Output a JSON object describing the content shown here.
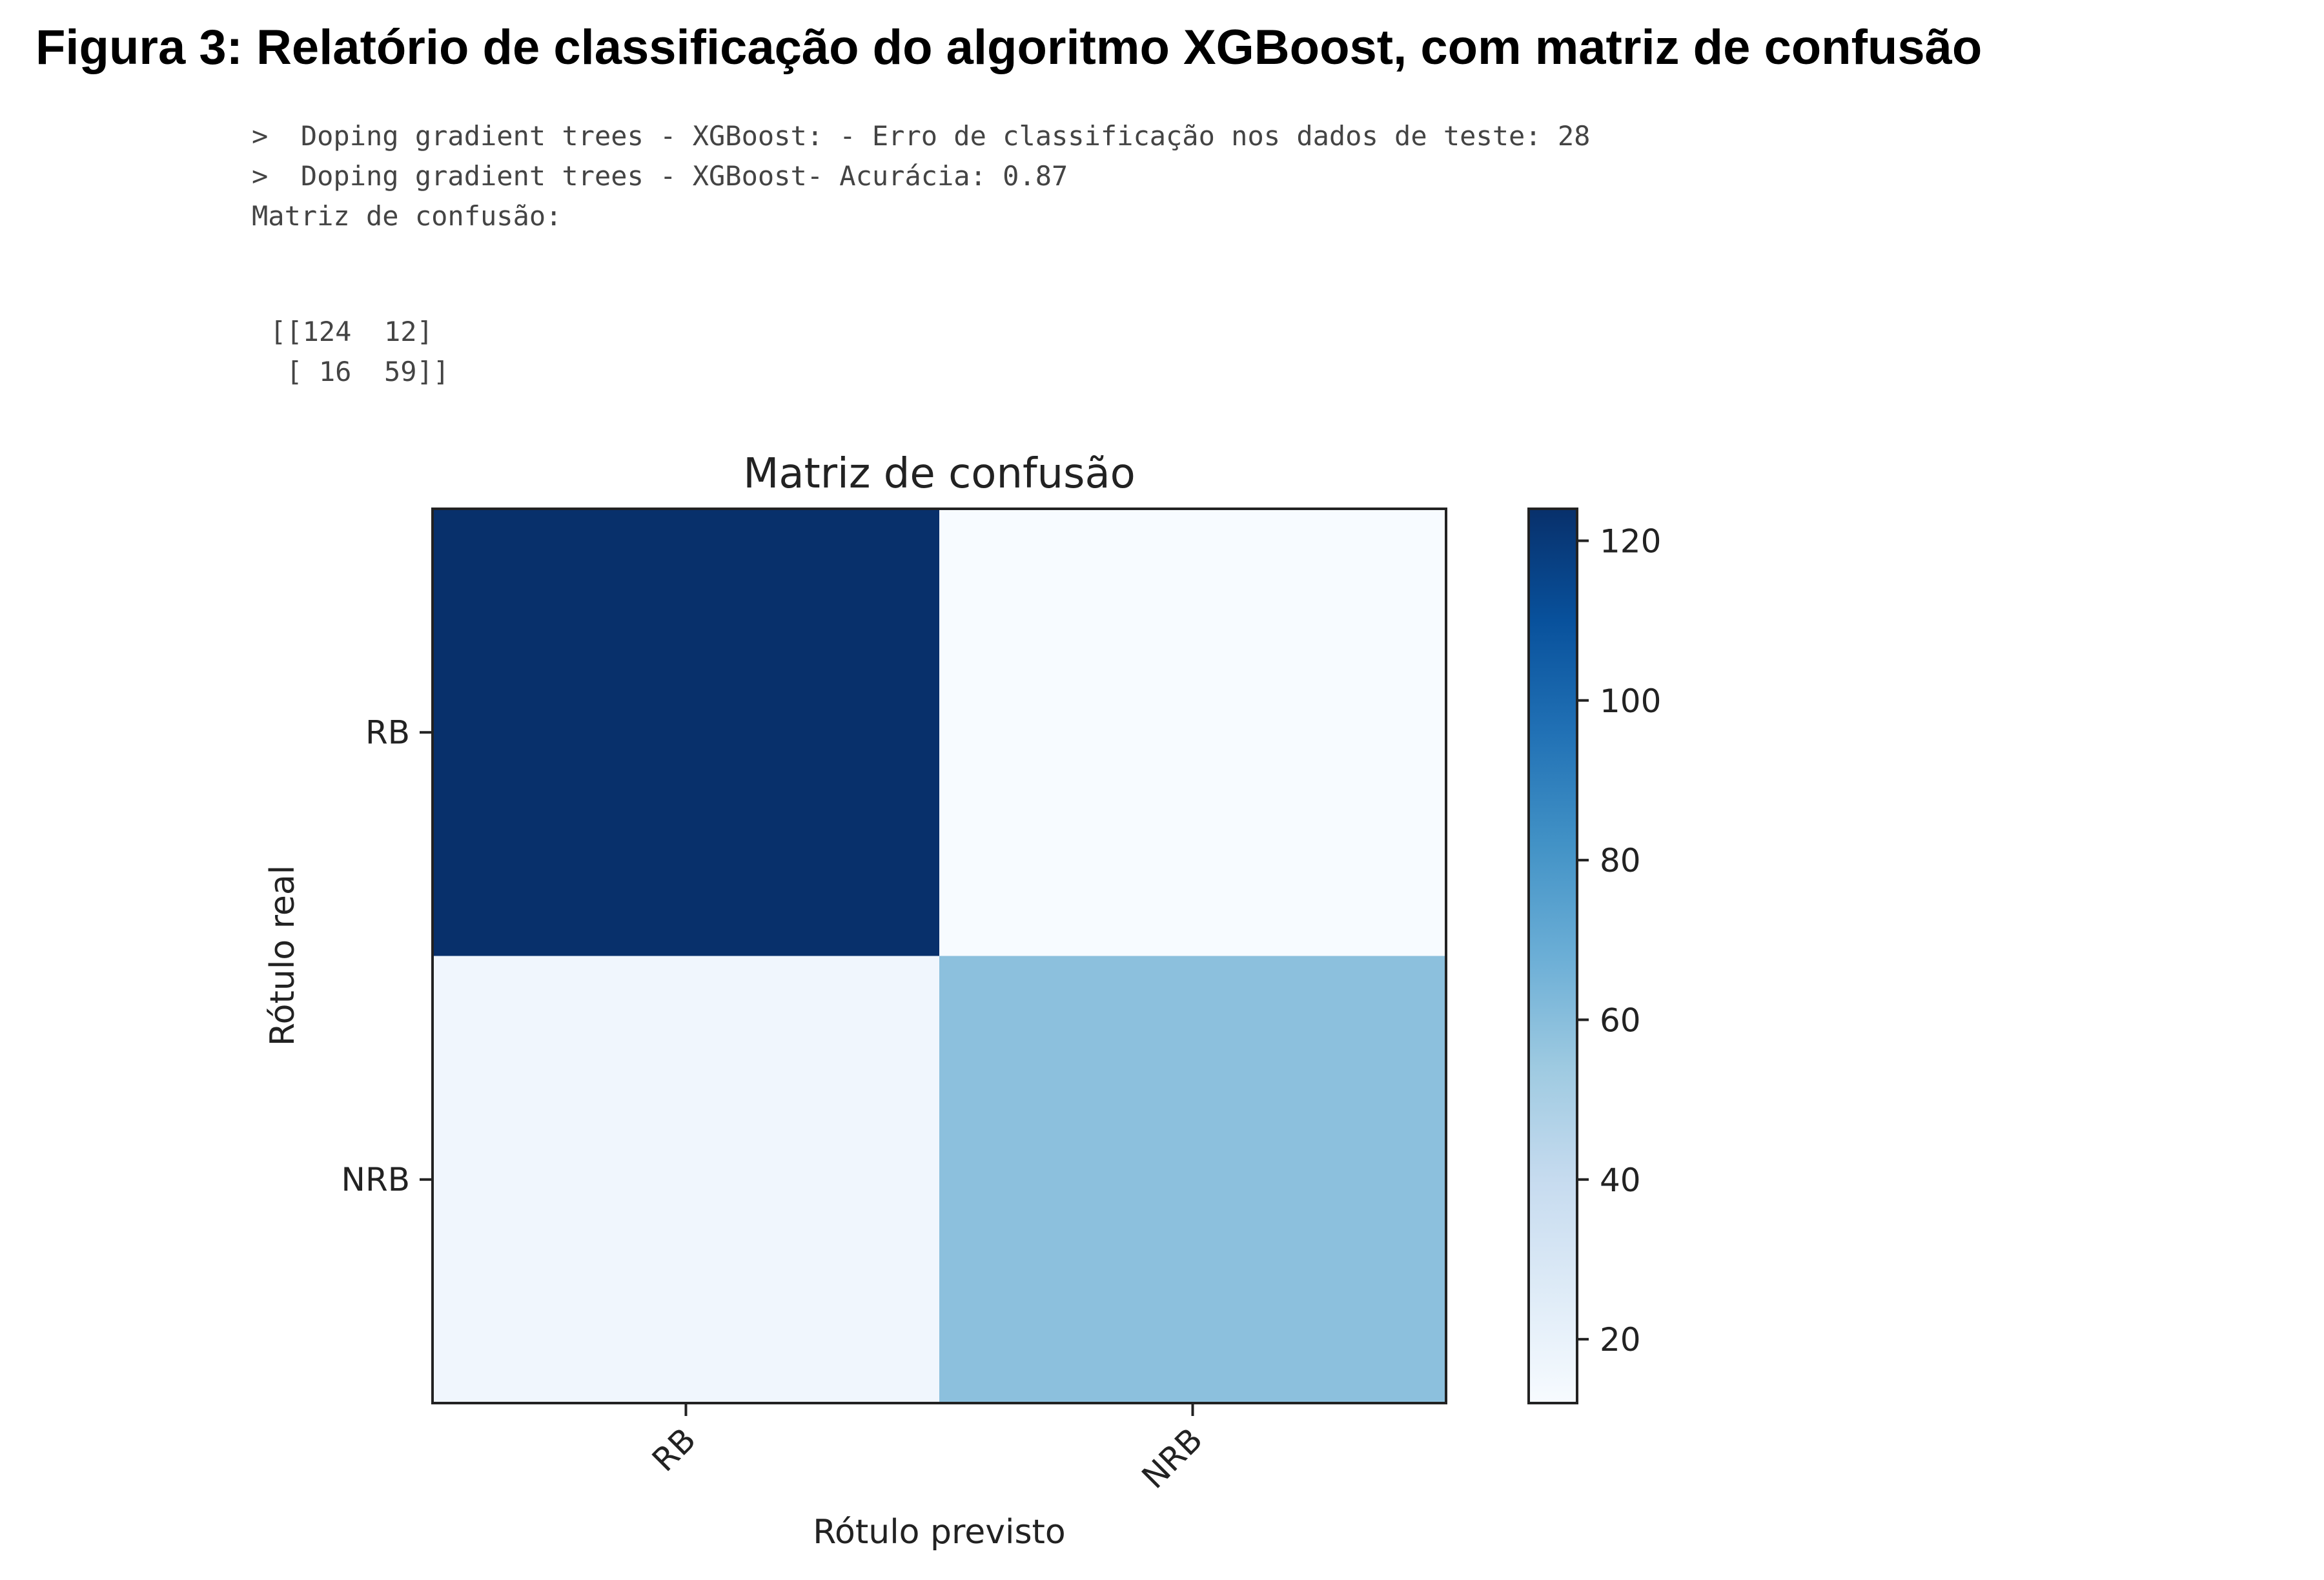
{
  "figure": {
    "caption": "Figura 3: Relatório de classificação do algoritmo XGBoost, com matriz de confusão"
  },
  "console": {
    "line1": ">  Doping gradient trees - XGBoost: - Erro de classificação nos dados de teste: 28",
    "line2": ">  Doping gradient trees - XGBoost- Acurácia: 0.87",
    "line3": "Matriz de confusão:",
    "matrix_row1": "[[124  12]",
    "matrix_row2": " [ 16  59]]"
  },
  "chart_data": {
    "type": "heatmap",
    "title": "Matriz de confusão",
    "xlabel": "Rótulo previsto",
    "ylabel": "Rótulo real",
    "x_categories": [
      "RB",
      "NRB"
    ],
    "y_categories": [
      "RB",
      "NRB"
    ],
    "values": [
      [
        124,
        12
      ],
      [
        16,
        59
      ]
    ],
    "colormap": "Blues",
    "colorbar": {
      "ticks": [
        20,
        40,
        60,
        80,
        100,
        120
      ],
      "range": [
        12,
        124
      ]
    },
    "grid": false
  }
}
